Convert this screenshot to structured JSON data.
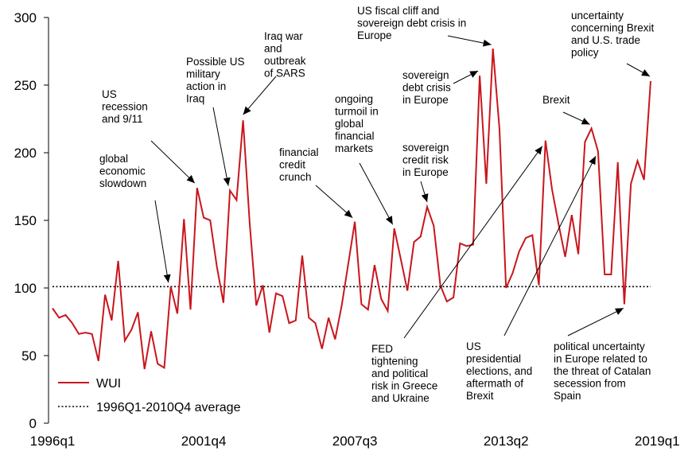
{
  "chart_data": {
    "type": "line",
    "x_tick_labels": [
      "1996q1",
      "2001q4",
      "2007q3",
      "2013q2",
      "2019q1"
    ],
    "y_ticks": [
      0,
      50,
      100,
      150,
      200,
      250,
      300
    ],
    "ylim": [
      0,
      300
    ],
    "grid": false,
    "legend_position": "bottom-left",
    "colors": {
      "WUI": "#c8161d",
      "average": "#000000"
    },
    "series": [
      {
        "name": "WUI",
        "start": "1996q1",
        "values": [
          85,
          78,
          80,
          74,
          66,
          67,
          66,
          46,
          95,
          76,
          120,
          61,
          69,
          82,
          40,
          68,
          44,
          41,
          101,
          81,
          151,
          84,
          174,
          152,
          150,
          116,
          89,
          172,
          165,
          224,
          148,
          87,
          102,
          67,
          96,
          94,
          74,
          76,
          124,
          78,
          74,
          55,
          78,
          62,
          87,
          118,
          149,
          88,
          84,
          117,
          92,
          83,
          144,
          121,
          98,
          134,
          138,
          160,
          146,
          102,
          90,
          93,
          133,
          131,
          132,
          257,
          177,
          277,
          218,
          100,
          111,
          127,
          137,
          139,
          102,
          209,
          173,
          147,
          123,
          154,
          125,
          208,
          218,
          201,
          110,
          110,
          193,
          88,
          177,
          194,
          180,
          253
        ]
      },
      {
        "name": "1996Q1-2010Q4 average",
        "constant": 101
      }
    ],
    "annotations": [
      {
        "lines": [
          "global",
          "economic",
          "slowdown"
        ],
        "target": "2000q3"
      },
      {
        "lines": [
          "US",
          "recession",
          "and 9/11"
        ],
        "target": "2001q3"
      },
      {
        "lines": [
          "Possible US",
          "military",
          "action in",
          "Iraq"
        ],
        "target": "2002q4"
      },
      {
        "lines": [
          "Iraq war",
          "and",
          "outbreak",
          "of SARS"
        ],
        "target": "2003q2"
      },
      {
        "lines": [
          "financial",
          "credit",
          "crunch"
        ],
        "target": "2007q3"
      },
      {
        "lines": [
          "ongoing",
          "turmoil in",
          "global",
          "financial",
          "markets"
        ],
        "target": "2009q1"
      },
      {
        "lines": [
          "sovereign",
          "credit risk",
          "in Europe"
        ],
        "target": "2010q2"
      },
      {
        "lines": [
          "sovereign",
          "debt crisis",
          "in Europe"
        ],
        "target": "2012q2"
      },
      {
        "lines": [
          "US fiscal cliff and",
          "sovereign debt crisis in",
          "Europe"
        ],
        "target": "2012q4"
      },
      {
        "lines": [
          "FED",
          "tightening",
          "and political",
          "risk in Greece",
          "and Ukraine"
        ],
        "target": "2014q4"
      },
      {
        "lines": [
          "US",
          "presidential",
          "elections, and",
          "aftermath of",
          "Brexit"
        ],
        "target": "2016q4"
      },
      {
        "lines": [
          "Brexit"
        ],
        "target": "2016q3"
      },
      {
        "lines": [
          "political uncertainty",
          "in Europe related to",
          "the threat of Catalan",
          "secession from",
          "Spain"
        ],
        "target": "2017q4"
      },
      {
        "lines": [
          "uncertainty",
          "concerning Brexit",
          "and U.S. trade",
          "policy"
        ],
        "target": "2018q4"
      }
    ]
  }
}
